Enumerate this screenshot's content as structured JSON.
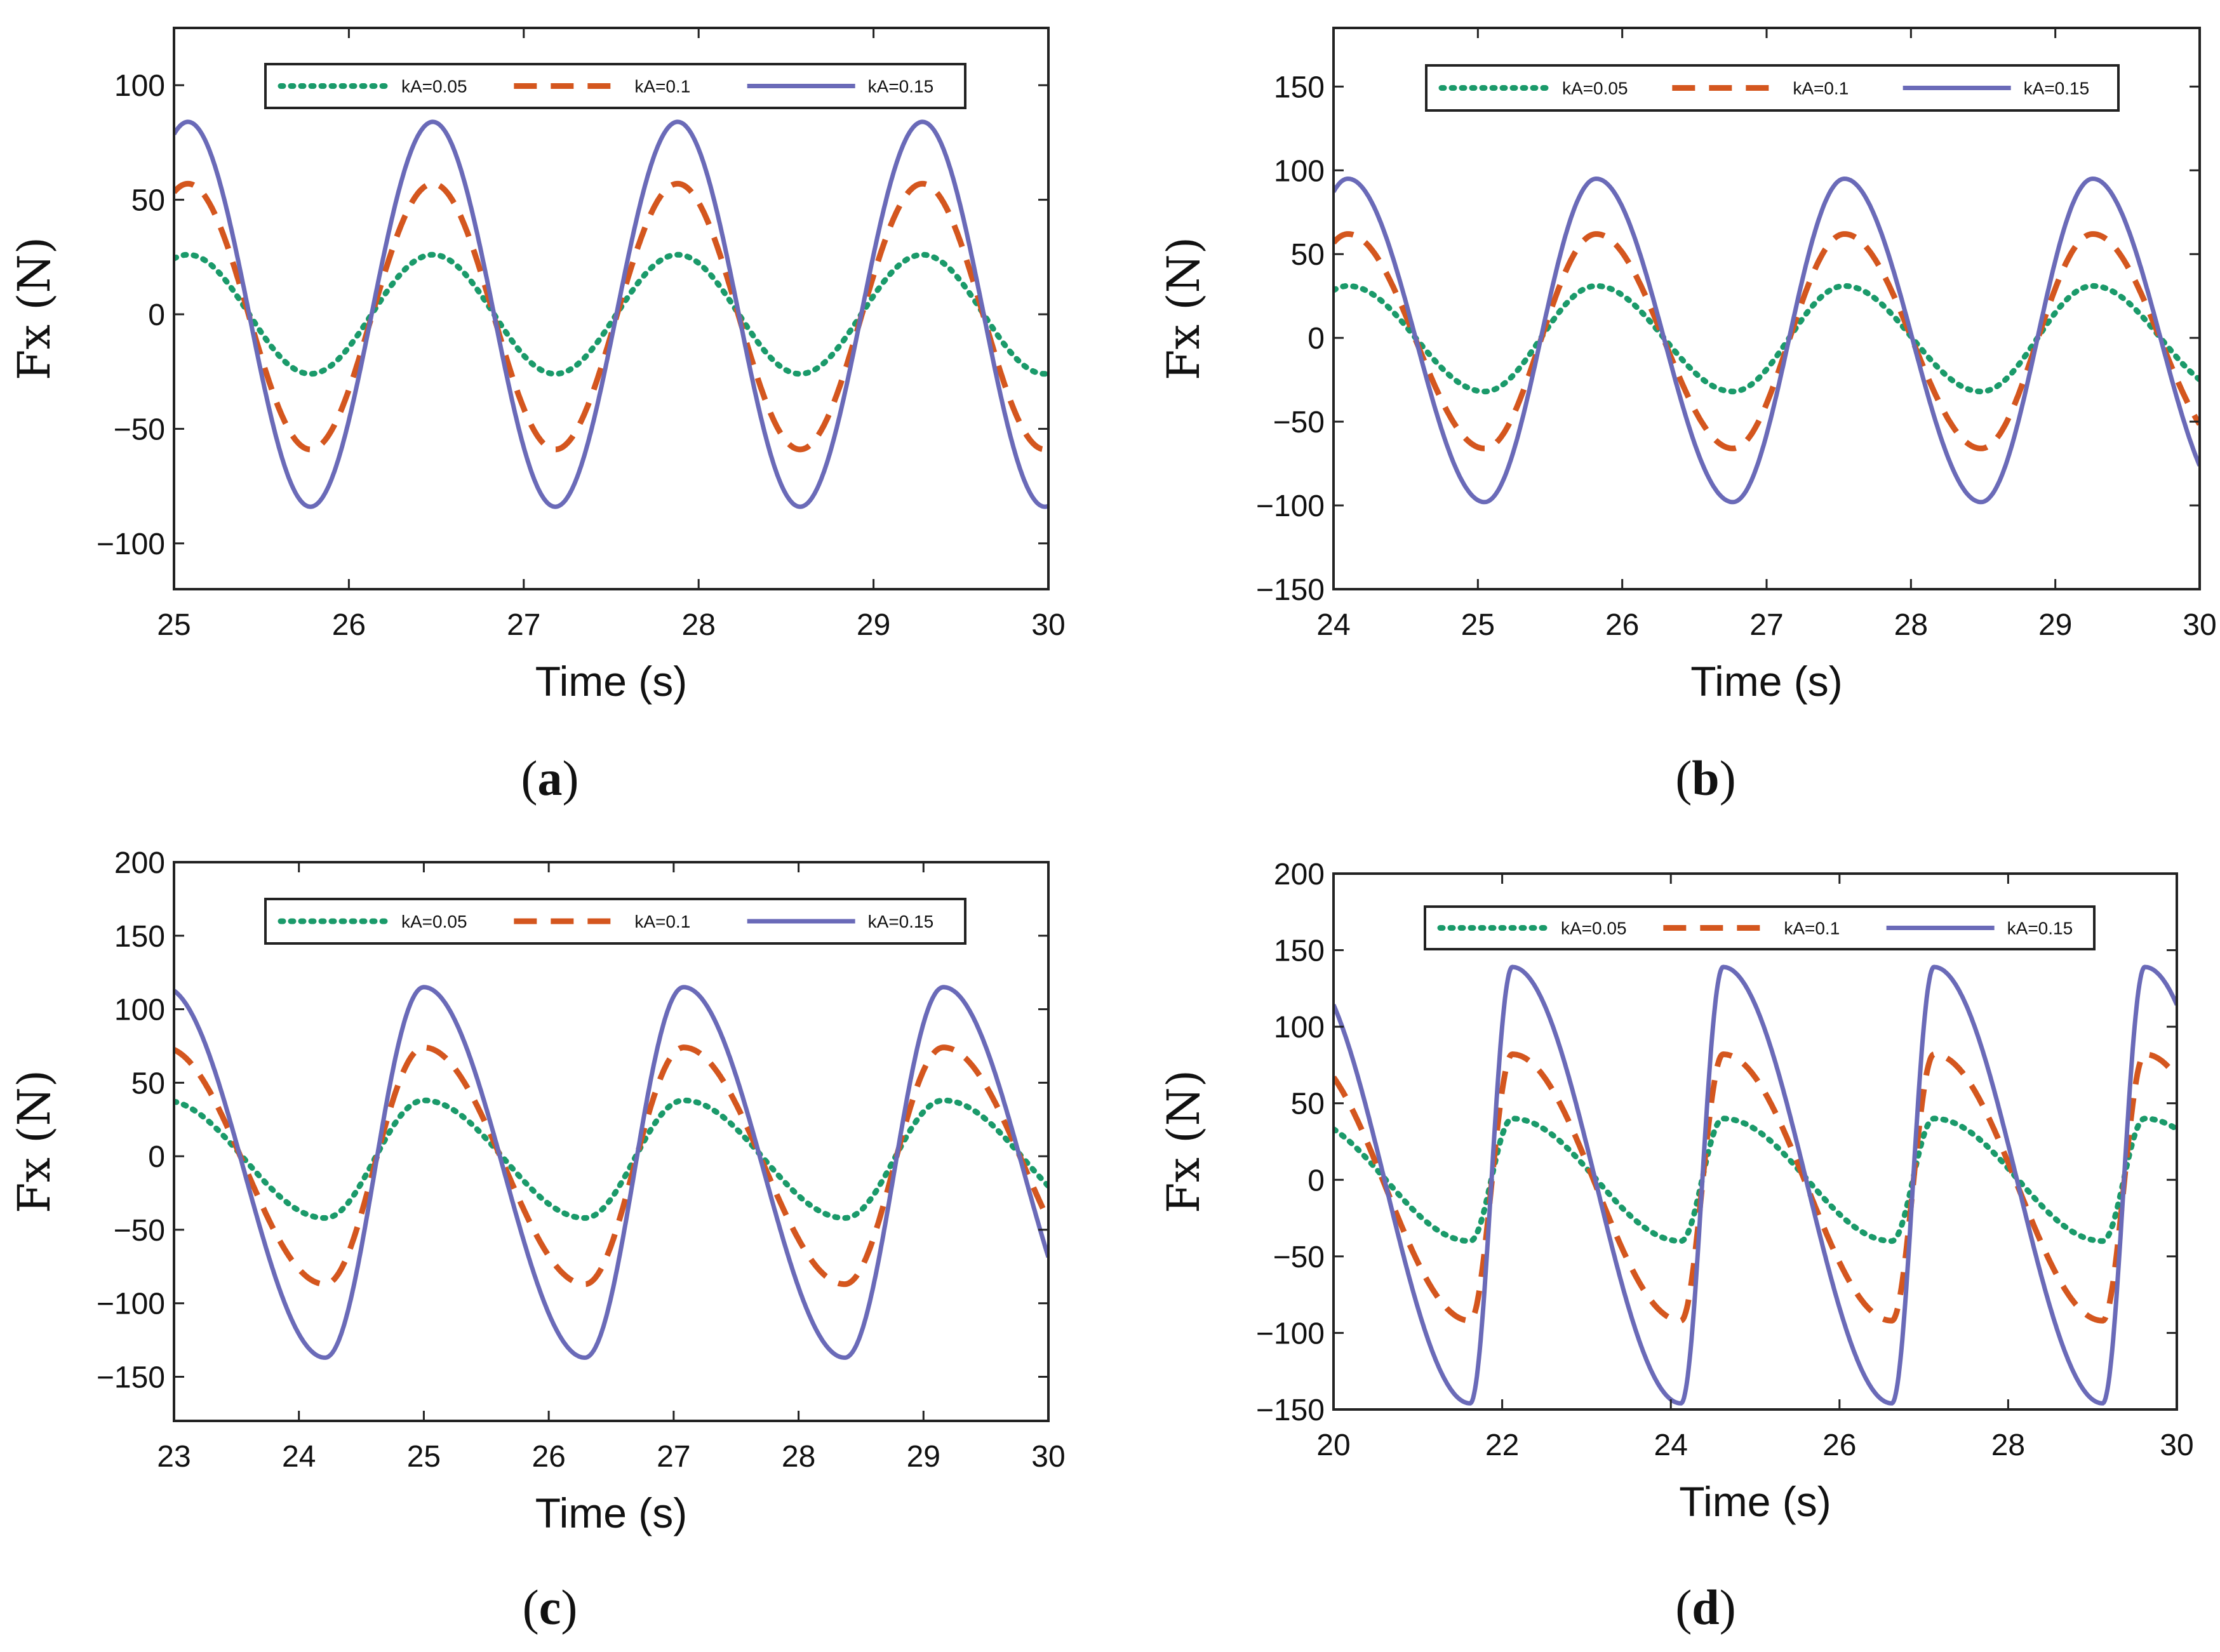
{
  "figure": {
    "series_styles": [
      {
        "name": "kA=0.05",
        "color": "#1a9a6a",
        "style": "dotted"
      },
      {
        "name": "kA=0.1",
        "color": "#d4561e",
        "style": "dashed"
      },
      {
        "name": "kA=0.15",
        "color": "#6a6ab8",
        "style": "solid"
      }
    ]
  },
  "chart_data": [
    {
      "type": "line",
      "caption_letter": "a",
      "xlabel": "Time (s)",
      "ylabel": "Fx (N)",
      "xlim": [
        25,
        30
      ],
      "ylim": [
        -120,
        125
      ],
      "xticks": [
        25,
        26,
        27,
        28,
        29,
        30
      ],
      "yticks": [
        -100,
        -50,
        0,
        50,
        100
      ],
      "xtick_labels": [
        "25",
        "26",
        "27",
        "28",
        "29",
        "30"
      ],
      "ytick_labels": [
        "−100",
        "−50",
        "0",
        "50",
        "100"
      ],
      "period": 1.4,
      "peak_time": 26.48,
      "skew": 0,
      "series": [
        {
          "name": "kA=0.05",
          "amplitude": 26,
          "peak": 26,
          "trough": -26
        },
        {
          "name": "kA=0.1",
          "amplitude": 58,
          "peak": 57,
          "trough": -59
        },
        {
          "name": "kA=0.15",
          "amplitude": 84,
          "peak": 84,
          "trough": -84
        }
      ]
    },
    {
      "type": "line",
      "caption_letter": "b",
      "xlabel": "Time (s)",
      "ylabel": "Fx (N)",
      "xlim": [
        24,
        30
      ],
      "ylim": [
        -150,
        185
      ],
      "xticks": [
        24,
        25,
        26,
        27,
        28,
        29,
        30
      ],
      "yticks": [
        -150,
        -100,
        -50,
        0,
        50,
        100,
        150
      ],
      "xtick_labels": [
        "24",
        "25",
        "26",
        "27",
        "28",
        "29",
        "30"
      ],
      "ytick_labels": [
        "−150",
        "−100",
        "−50",
        "0",
        "50",
        "100",
        "150"
      ],
      "period": 1.72,
      "peak_time": 25.82,
      "skew": 0.05,
      "series": [
        {
          "name": "kA=0.05",
          "amplitude": 32,
          "peak": 31,
          "trough": -32
        },
        {
          "name": "kA=0.1",
          "amplitude": 63,
          "peak": 62,
          "trough": -66
        },
        {
          "name": "kA=0.15",
          "amplitude": 96,
          "peak": 95,
          "trough": -98
        }
      ]
    },
    {
      "type": "line",
      "caption_letter": "c",
      "xlabel": "Time (s)",
      "ylabel": "Fx (N)",
      "xlim": [
        23,
        30
      ],
      "ylim": [
        -180,
        200
      ],
      "xticks": [
        23,
        24,
        25,
        26,
        27,
        28,
        29,
        30
      ],
      "yticks": [
        -150,
        -100,
        -50,
        0,
        50,
        100,
        150,
        200
      ],
      "xtick_labels": [
        "23",
        "24",
        "25",
        "26",
        "27",
        "28",
        "29",
        "30"
      ],
      "ytick_labels": [
        "−150",
        "−100",
        "−50",
        "0",
        "50",
        "100",
        "150",
        "200"
      ],
      "period": 2.08,
      "peak_time": 25.0,
      "skew": 0.12,
      "series": [
        {
          "name": "kA=0.05",
          "amplitude": 40,
          "peak": 38,
          "trough": -42
        },
        {
          "name": "kA=0.1",
          "amplitude": 80,
          "peak": 74,
          "trough": -87
        },
        {
          "name": "kA=0.15",
          "amplitude": 125,
          "peak": 115,
          "trough": -137
        }
      ]
    },
    {
      "type": "line",
      "caption_letter": "d",
      "xlabel": "Time (s)",
      "ylabel": "Fx (N)",
      "xlim": [
        20,
        30
      ],
      "ylim": [
        -150,
        200
      ],
      "xticks": [
        20,
        22,
        24,
        26,
        28,
        30
      ],
      "yticks": [
        -150,
        -100,
        -50,
        0,
        50,
        100,
        150,
        200
      ],
      "xtick_labels": [
        "20",
        "22",
        "24",
        "26",
        "28",
        "30"
      ],
      "ytick_labels": [
        "−150",
        "−100",
        "−50",
        "0",
        "50",
        "100",
        "150",
        "200"
      ],
      "period": 2.5,
      "peak_time": 22.12,
      "skew": 0.3,
      "series": [
        {
          "name": "kA=0.05",
          "amplitude": 40,
          "peak": 40,
          "trough": -40
        },
        {
          "name": "kA=0.1",
          "amplitude": 88,
          "peak": 82,
          "trough": -92
        },
        {
          "name": "kA=0.15",
          "amplitude": 145,
          "peak": 139,
          "trough": -146
        }
      ]
    }
  ]
}
